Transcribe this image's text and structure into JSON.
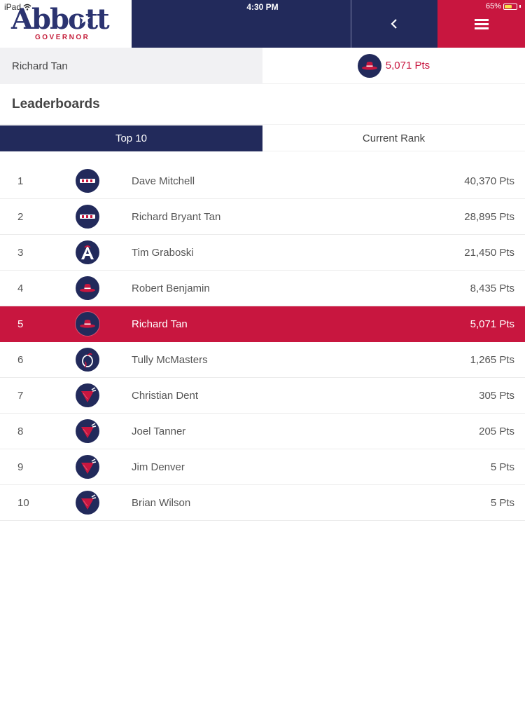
{
  "status": {
    "carrier": "iPad",
    "time": "4:30 PM",
    "battery": "65%",
    "battery_level": 0.65
  },
  "header": {
    "logo_word": "Abbott",
    "logo_sub": "GOVERNOR",
    "back_icon": "chevron-left-icon",
    "menu_icon": "hamburger-icon"
  },
  "user": {
    "name": "Richard Tan",
    "points": "5,071 Pts",
    "avatar_icon": "hat-icon"
  },
  "leaderboard": {
    "title": "Leaderboards",
    "tabs": [
      {
        "label": "Top 10",
        "active": true
      },
      {
        "label": "Current Rank",
        "active": false
      }
    ],
    "rows": [
      {
        "rank": "1",
        "name": "Dave Mitchell",
        "points": "40,370 Pts",
        "icon": "boot-icon",
        "highlight": false
      },
      {
        "rank": "2",
        "name": "Richard Bryant Tan",
        "points": "28,895 Pts",
        "icon": "boot-icon",
        "highlight": false
      },
      {
        "rank": "3",
        "name": "Tim Graboski",
        "points": "21,450 Pts",
        "icon": "a-badge-icon",
        "highlight": false
      },
      {
        "rank": "4",
        "name": "Robert Benjamin",
        "points": "8,435 Pts",
        "icon": "hat-icon",
        "highlight": false
      },
      {
        "rank": "5",
        "name": "Richard Tan",
        "points": "5,071 Pts",
        "icon": "hat-icon",
        "highlight": true
      },
      {
        "rank": "6",
        "name": "Tully McMasters",
        "points": "1,265 Pts",
        "icon": "lasso-icon",
        "highlight": false
      },
      {
        "rank": "7",
        "name": "Christian Dent",
        "points": "305 Pts",
        "icon": "bandana-icon",
        "highlight": false
      },
      {
        "rank": "8",
        "name": "Joel Tanner",
        "points": "205 Pts",
        "icon": "bandana-icon",
        "highlight": false
      },
      {
        "rank": "9",
        "name": "Jim Denver",
        "points": "5 Pts",
        "icon": "bandana-icon",
        "highlight": false
      },
      {
        "rank": "10",
        "name": "Brian Wilson",
        "points": "5 Pts",
        "icon": "bandana-icon",
        "highlight": false
      }
    ]
  },
  "colors": {
    "navy": "#222a5b",
    "red": "#c8163f",
    "light_gray": "#f1f1f3"
  }
}
